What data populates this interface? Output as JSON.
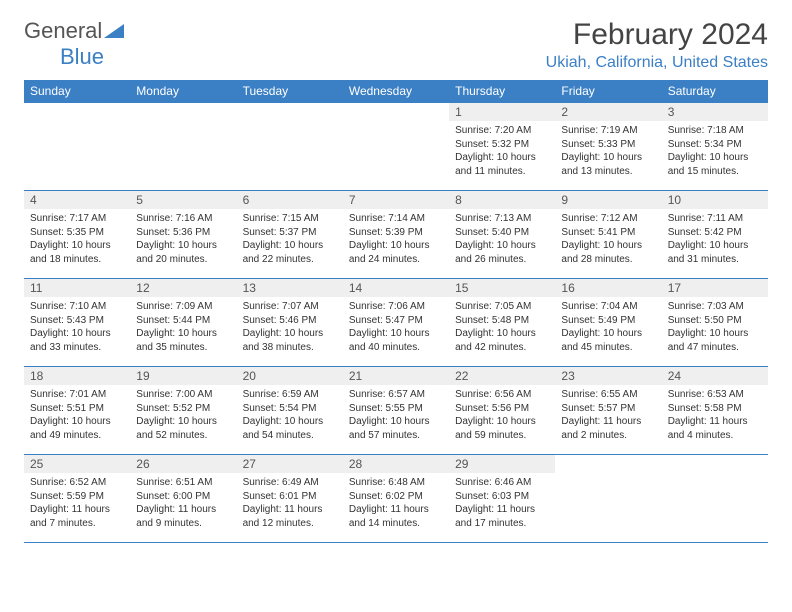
{
  "brand": {
    "general": "General",
    "blue": "Blue"
  },
  "title": "February 2024",
  "location": "Ukiah, California, United States",
  "colors": {
    "accent": "#3b7fc4",
    "header_text": "#ffffff",
    "daynum_bg": "#efefef",
    "text": "#333333",
    "background": "#ffffff"
  },
  "weekdays": [
    "Sunday",
    "Monday",
    "Tuesday",
    "Wednesday",
    "Thursday",
    "Friday",
    "Saturday"
  ],
  "layout": {
    "leading_blank": 4,
    "days_in_month": 29
  },
  "days": {
    "1": {
      "sunrise": "7:20 AM",
      "sunset": "5:32 PM",
      "daylight": "10 hours and 11 minutes."
    },
    "2": {
      "sunrise": "7:19 AM",
      "sunset": "5:33 PM",
      "daylight": "10 hours and 13 minutes."
    },
    "3": {
      "sunrise": "7:18 AM",
      "sunset": "5:34 PM",
      "daylight": "10 hours and 15 minutes."
    },
    "4": {
      "sunrise": "7:17 AM",
      "sunset": "5:35 PM",
      "daylight": "10 hours and 18 minutes."
    },
    "5": {
      "sunrise": "7:16 AM",
      "sunset": "5:36 PM",
      "daylight": "10 hours and 20 minutes."
    },
    "6": {
      "sunrise": "7:15 AM",
      "sunset": "5:37 PM",
      "daylight": "10 hours and 22 minutes."
    },
    "7": {
      "sunrise": "7:14 AM",
      "sunset": "5:39 PM",
      "daylight": "10 hours and 24 minutes."
    },
    "8": {
      "sunrise": "7:13 AM",
      "sunset": "5:40 PM",
      "daylight": "10 hours and 26 minutes."
    },
    "9": {
      "sunrise": "7:12 AM",
      "sunset": "5:41 PM",
      "daylight": "10 hours and 28 minutes."
    },
    "10": {
      "sunrise": "7:11 AM",
      "sunset": "5:42 PM",
      "daylight": "10 hours and 31 minutes."
    },
    "11": {
      "sunrise": "7:10 AM",
      "sunset": "5:43 PM",
      "daylight": "10 hours and 33 minutes."
    },
    "12": {
      "sunrise": "7:09 AM",
      "sunset": "5:44 PM",
      "daylight": "10 hours and 35 minutes."
    },
    "13": {
      "sunrise": "7:07 AM",
      "sunset": "5:46 PM",
      "daylight": "10 hours and 38 minutes."
    },
    "14": {
      "sunrise": "7:06 AM",
      "sunset": "5:47 PM",
      "daylight": "10 hours and 40 minutes."
    },
    "15": {
      "sunrise": "7:05 AM",
      "sunset": "5:48 PM",
      "daylight": "10 hours and 42 minutes."
    },
    "16": {
      "sunrise": "7:04 AM",
      "sunset": "5:49 PM",
      "daylight": "10 hours and 45 minutes."
    },
    "17": {
      "sunrise": "7:03 AM",
      "sunset": "5:50 PM",
      "daylight": "10 hours and 47 minutes."
    },
    "18": {
      "sunrise": "7:01 AM",
      "sunset": "5:51 PM",
      "daylight": "10 hours and 49 minutes."
    },
    "19": {
      "sunrise": "7:00 AM",
      "sunset": "5:52 PM",
      "daylight": "10 hours and 52 minutes."
    },
    "20": {
      "sunrise": "6:59 AM",
      "sunset": "5:54 PM",
      "daylight": "10 hours and 54 minutes."
    },
    "21": {
      "sunrise": "6:57 AM",
      "sunset": "5:55 PM",
      "daylight": "10 hours and 57 minutes."
    },
    "22": {
      "sunrise": "6:56 AM",
      "sunset": "5:56 PM",
      "daylight": "10 hours and 59 minutes."
    },
    "23": {
      "sunrise": "6:55 AM",
      "sunset": "5:57 PM",
      "daylight": "11 hours and 2 minutes."
    },
    "24": {
      "sunrise": "6:53 AM",
      "sunset": "5:58 PM",
      "daylight": "11 hours and 4 minutes."
    },
    "25": {
      "sunrise": "6:52 AM",
      "sunset": "5:59 PM",
      "daylight": "11 hours and 7 minutes."
    },
    "26": {
      "sunrise": "6:51 AM",
      "sunset": "6:00 PM",
      "daylight": "11 hours and 9 minutes."
    },
    "27": {
      "sunrise": "6:49 AM",
      "sunset": "6:01 PM",
      "daylight": "11 hours and 12 minutes."
    },
    "28": {
      "sunrise": "6:48 AM",
      "sunset": "6:02 PM",
      "daylight": "11 hours and 14 minutes."
    },
    "29": {
      "sunrise": "6:46 AM",
      "sunset": "6:03 PM",
      "daylight": "11 hours and 17 minutes."
    }
  },
  "labels": {
    "sunrise": "Sunrise: ",
    "sunset": "Sunset: ",
    "daylight": "Daylight: "
  }
}
